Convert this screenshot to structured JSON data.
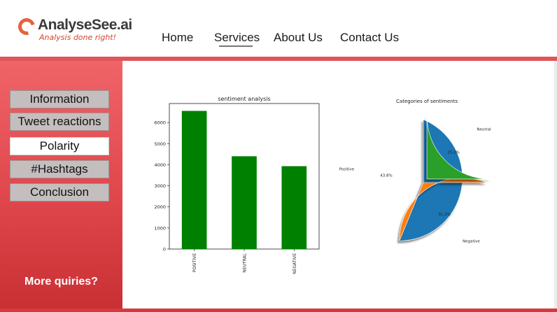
{
  "logo": {
    "name": "AnalyseSee.ai",
    "tagline": "Analysis done right!"
  },
  "nav": {
    "items": [
      "Home",
      "Services",
      "About Us",
      "Contact Us"
    ],
    "active": "Services"
  },
  "sidebar": {
    "items": [
      {
        "label": "Information"
      },
      {
        "label": "Tweet reactions"
      },
      {
        "label": "Polarity"
      },
      {
        "label": "#Hashtags"
      },
      {
        "label": "Conclusion"
      }
    ],
    "active": "Polarity",
    "more_label": "More quiries?"
  },
  "colors": {
    "accent": "#e0555a",
    "bar": "#008000",
    "pie_positive": "#1f77b4",
    "pie_negative": "#ff7f0e",
    "pie_neutral": "#2ca02c"
  },
  "chart_data": [
    {
      "type": "bar",
      "title": "sentiment analysis",
      "categories": [
        "POSITIVE",
        "NEUTRAL",
        "NEGATIVE"
      ],
      "values": [
        6550,
        4400,
        3930
      ],
      "yticks": [
        0,
        1000,
        2000,
        3000,
        4000,
        5000,
        6000
      ],
      "ylim": [
        0,
        6900
      ],
      "xlabel": "",
      "ylabel": "",
      "grid": false
    },
    {
      "type": "pie",
      "title": "Categories of sentiments",
      "labels": [
        "Positive",
        "Negative",
        "Neutral"
      ],
      "values": [
        43.8,
        31.2,
        25.0
      ],
      "value_labels": [
        "43.8%",
        "31.2%",
        "25.0%"
      ],
      "exploded": "Neutral",
      "shadow": true
    }
  ]
}
